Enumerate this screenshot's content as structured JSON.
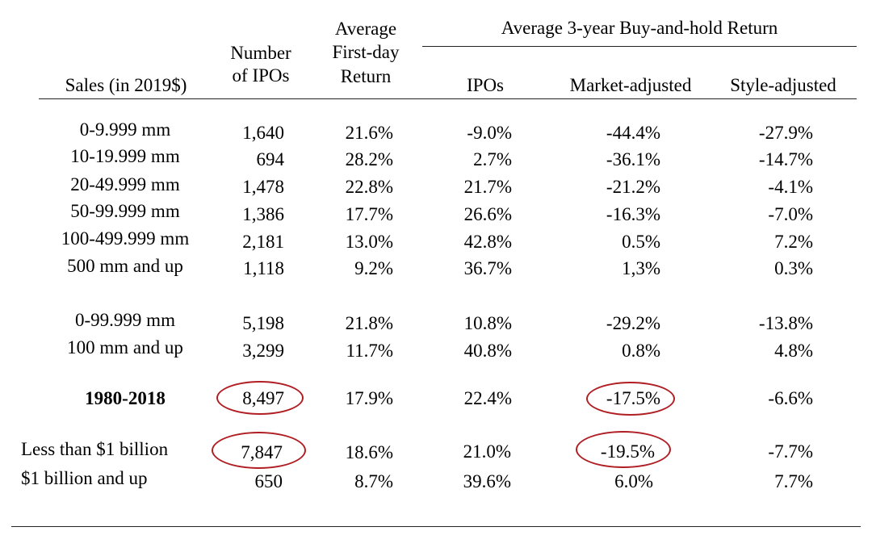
{
  "header": {
    "sales": "Sales (in 2019$)",
    "num_ipos_1": "Number",
    "num_ipos_2": "of IPOs",
    "first_day_1": "Average",
    "first_day_2": "First-day",
    "first_day_3": "Return",
    "group": "Average 3-year Buy-and-hold Return",
    "ipos": "IPOs",
    "market": "Market-adjusted",
    "style": "Style-adjusted"
  },
  "rows": [
    {
      "label": "0-9.999 mm",
      "n": "1,640",
      "fd": "21.6%",
      "ipo": "-9.0%",
      "mkt": "-44.4%",
      "sty": "-27.9%"
    },
    {
      "label": "10-19.999 mm",
      "n": "694",
      "fd": "28.2%",
      "ipo": "2.7%",
      "mkt": "-36.1%",
      "sty": "-14.7%"
    },
    {
      "label": "20-49.999 mm",
      "n": "1,478",
      "fd": "22.8%",
      "ipo": "21.7%",
      "mkt": "-21.2%",
      "sty": "-4.1%"
    },
    {
      "label": "50-99.999 mm",
      "n": "1,386",
      "fd": "17.7%",
      "ipo": "26.6%",
      "mkt": "-16.3%",
      "sty": "-7.0%"
    },
    {
      "label": "100-499.999 mm",
      "n": "2,181",
      "fd": "13.0%",
      "ipo": "42.8%",
      "mkt": "0.5%",
      "sty": "7.2%"
    },
    {
      "label": "500 mm and up",
      "n": "1,118",
      "fd": "9.2%",
      "ipo": "36.7%",
      "mkt": "1,3%",
      "sty": "0.3%"
    },
    {
      "label": "0-99.999 mm",
      "n": "5,198",
      "fd": "21.8%",
      "ipo": "10.8%",
      "mkt": "-29.2%",
      "sty": "-13.8%"
    },
    {
      "label": "100 mm and up",
      "n": "3,299",
      "fd": "11.7%",
      "ipo": "40.8%",
      "mkt": "0.8%",
      "sty": "4.8%"
    },
    {
      "label": "1980-2018",
      "n": "8,497",
      "fd": "17.9%",
      "ipo": "22.4%",
      "mkt": "-17.5%",
      "sty": "-6.6%"
    },
    {
      "label": "Less than $1 billion",
      "n": "7,847",
      "fd": "18.6%",
      "ipo": "21.0%",
      "mkt": "-19.5%",
      "sty": "-7.7%"
    },
    {
      "label": "$1 billion and up",
      "n": "650",
      "fd": "8.7%",
      "ipo": "39.6%",
      "mkt": "6.0%",
      "sty": "7.7%"
    }
  ],
  "colors": {
    "highlight_circle": "#b01e23",
    "rule": "#222222"
  }
}
